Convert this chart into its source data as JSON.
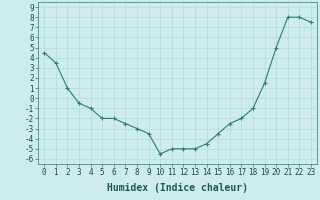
{
  "x": [
    0,
    1,
    2,
    3,
    4,
    5,
    6,
    7,
    8,
    9,
    10,
    11,
    12,
    13,
    14,
    15,
    16,
    17,
    18,
    19,
    20,
    21,
    22,
    23
  ],
  "y": [
    4.5,
    3.5,
    1.0,
    -0.5,
    -1.0,
    -2.0,
    -2.0,
    -2.5,
    -3.0,
    -3.5,
    -5.5,
    -5.0,
    -5.0,
    -5.0,
    -4.5,
    -3.5,
    -2.5,
    -2.0,
    -1.0,
    1.5,
    5.0,
    8.0,
    8.0,
    7.5
  ],
  "xlabel": "Humidex (Indice chaleur)",
  "ylim": [
    -6.5,
    9.5
  ],
  "xlim": [
    -0.5,
    23.5
  ],
  "line_color": "#2d7d6e",
  "bg_color": "#ceecea",
  "grid_color": "#b0dbd7",
  "xlabel_fontsize": 7,
  "tick_fontsize": 5.5,
  "yticks": [
    -6,
    -5,
    -4,
    -3,
    -2,
    -1,
    0,
    1,
    2,
    3,
    4,
    5,
    6,
    7,
    8,
    9
  ],
  "xticks": [
    0,
    1,
    2,
    3,
    4,
    5,
    6,
    7,
    8,
    9,
    10,
    11,
    12,
    13,
    14,
    15,
    16,
    17,
    18,
    19,
    20,
    21,
    22,
    23
  ]
}
